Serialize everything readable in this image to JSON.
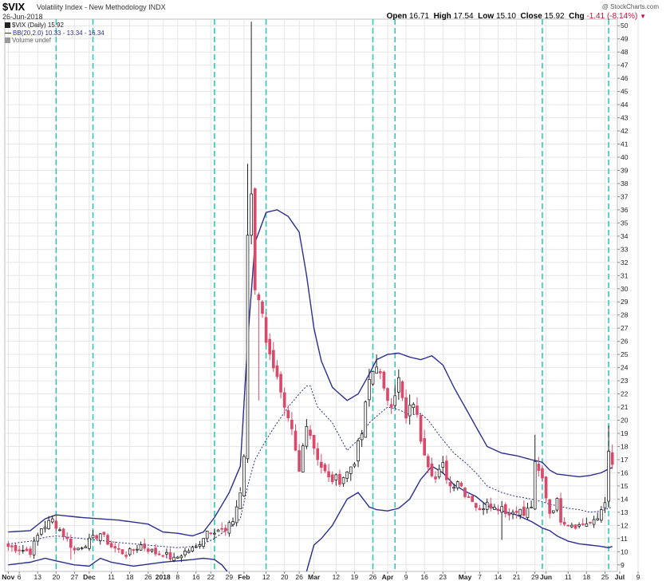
{
  "header": {
    "symbol": "$VIX",
    "symbol_name": "Volatility Index - New Methodology",
    "exchange": "INDX",
    "date": "26-Jun-2018",
    "open_label": "Open",
    "open": "16.71",
    "high_label": "High",
    "high": "17.54",
    "low_label": "Low",
    "low": "15.10",
    "close_label": "Close",
    "close": "15.92",
    "chg_label": "Chg",
    "chg": "-1.41 (-8.14%)",
    "brand": "@ StockCharts.com"
  },
  "legend": {
    "series1": "$VIX (Daily) 15.92",
    "series2": "BB(20,2.0) 10.33 - 13.34 - 16.34",
    "series3": "Volume undef"
  },
  "colors": {
    "up": "#222222",
    "down": "#d94a6a",
    "bands": "#2b2f8f",
    "cycle_lines": "#2fc8b8",
    "grid": "#e6e6e6"
  },
  "chart_data": {
    "type": "candlestick",
    "ylim": [
      8.5,
      50.5
    ],
    "y_ticks": [
      9,
      10,
      11,
      12,
      13,
      14,
      15,
      16,
      17,
      18,
      19,
      20,
      21,
      22,
      23,
      24,
      25,
      26,
      27,
      28,
      29,
      30,
      31,
      32,
      33,
      34,
      35,
      36,
      37,
      38,
      39,
      40,
      41,
      42,
      43,
      44,
      45,
      46,
      47,
      48,
      49,
      50
    ],
    "x_ticks": [
      {
        "label": "Nov",
        "bold": true,
        "bar": 0
      },
      {
        "label": "6",
        "bar": 3
      },
      {
        "label": "13",
        "bar": 8
      },
      {
        "label": "20",
        "bar": 13
      },
      {
        "label": "27",
        "bar": 18
      },
      {
        "label": "Dec",
        "bold": true,
        "bar": 22
      },
      {
        "label": "11",
        "bar": 28
      },
      {
        "label": "18",
        "bar": 33
      },
      {
        "label": "26",
        "bar": 38
      },
      {
        "label": "2018",
        "bold": true,
        "bar": 42
      },
      {
        "label": "8",
        "bar": 46
      },
      {
        "label": "16",
        "bar": 51
      },
      {
        "label": "22",
        "bar": 55
      },
      {
        "label": "29",
        "bar": 60
      },
      {
        "label": "Feb",
        "bold": true,
        "bar": 64
      },
      {
        "label": "12",
        "bar": 70
      },
      {
        "label": "20",
        "bar": 75
      },
      {
        "label": "26",
        "bar": 79
      },
      {
        "label": "Mar",
        "bold": true,
        "bar": 83
      },
      {
        "label": "12",
        "bar": 89
      },
      {
        "label": "19",
        "bar": 94
      },
      {
        "label": "26",
        "bar": 99
      },
      {
        "label": "Apr",
        "bold": true,
        "bar": 103
      },
      {
        "label": "9",
        "bar": 108
      },
      {
        "label": "16",
        "bar": 113
      },
      {
        "label": "23",
        "bar": 118
      },
      {
        "label": "May",
        "bold": true,
        "bar": 124
      },
      {
        "label": "7",
        "bar": 128
      },
      {
        "label": "14",
        "bar": 133
      },
      {
        "label": "21",
        "bar": 138
      },
      {
        "label": "29",
        "bar": 143
      },
      {
        "label": "Jun",
        "bold": true,
        "bar": 146
      },
      {
        "label": "11",
        "bar": 152
      },
      {
        "label": "18",
        "bar": 157
      },
      {
        "label": "25",
        "bar": 162
      },
      {
        "label": "Jul",
        "bold": true,
        "bar": 166
      },
      {
        "label": "9",
        "bar": 171
      }
    ],
    "cycle_lines_at_bars": [
      13,
      23,
      56,
      70,
      99,
      105,
      145,
      163
    ],
    "anchors": [
      [
        0,
        10.4
      ],
      [
        3,
        10.2
      ],
      [
        6,
        10.0
      ],
      [
        9,
        11.8
      ],
      [
        12,
        12.4
      ],
      [
        15,
        11.3
      ],
      [
        18,
        10.1
      ],
      [
        22,
        10.8
      ],
      [
        25,
        11.4
      ],
      [
        28,
        10.4
      ],
      [
        32,
        9.8
      ],
      [
        36,
        10.5
      ],
      [
        40,
        9.9
      ],
      [
        42,
        9.9
      ],
      [
        45,
        9.4
      ],
      [
        48,
        10.0
      ],
      [
        51,
        10.3
      ],
      [
        54,
        11.6
      ],
      [
        57,
        11.7
      ],
      [
        59,
        11.5
      ],
      [
        61,
        12.4
      ],
      [
        63,
        14.5
      ],
      [
        64,
        17.3
      ],
      [
        65,
        33.5
      ],
      [
        66,
        37.3
      ],
      [
        67,
        30.0
      ],
      [
        68,
        29.5
      ],
      [
        69,
        28.5
      ],
      [
        70,
        25.6
      ],
      [
        71,
        25.5
      ],
      [
        73,
        23.0
      ],
      [
        75,
        20.5
      ],
      [
        77,
        19.0
      ],
      [
        79,
        16.0
      ],
      [
        81,
        20.0
      ],
      [
        83,
        18.0
      ],
      [
        85,
        16.5
      ],
      [
        87,
        15.5
      ],
      [
        90,
        15.5
      ],
      [
        92,
        16.0
      ],
      [
        94,
        17.0
      ],
      [
        96,
        19.0
      ],
      [
        98,
        23.0
      ],
      [
        100,
        24.5
      ],
      [
        102,
        22.0
      ],
      [
        104,
        21.5
      ],
      [
        106,
        23.0
      ],
      [
        108,
        20.0
      ],
      [
        110,
        21.5
      ],
      [
        112,
        18.7
      ],
      [
        114,
        16.8
      ],
      [
        116,
        15.5
      ],
      [
        118,
        16.5
      ],
      [
        120,
        15.0
      ],
      [
        122,
        15.5
      ],
      [
        124,
        14.5
      ],
      [
        126,
        14.0
      ],
      [
        128,
        13.0
      ],
      [
        130,
        14.0
      ],
      [
        132,
        13.3
      ],
      [
        134,
        13.5
      ],
      [
        136,
        12.8
      ],
      [
        138,
        13.3
      ],
      [
        140,
        12.8
      ],
      [
        142,
        13.5
      ],
      [
        143,
        16.5
      ],
      [
        144,
        16.0
      ],
      [
        145,
        15.5
      ],
      [
        147,
        13.0
      ],
      [
        149,
        13.8
      ],
      [
        150,
        12.5
      ],
      [
        152,
        12.2
      ],
      [
        155,
        12.0
      ],
      [
        157,
        12.2
      ],
      [
        159,
        12.2
      ],
      [
        160,
        12.5
      ],
      [
        162,
        14.0
      ],
      [
        163,
        17.3
      ],
      [
        164,
        16.5
      ]
    ],
    "bands": {
      "upper": [
        [
          0,
          11.5
        ],
        [
          6,
          11.6
        ],
        [
          10,
          12.5
        ],
        [
          13,
          12.8
        ],
        [
          20,
          12.6
        ],
        [
          30,
          12.4
        ],
        [
          38,
          12.1
        ],
        [
          42,
          11.5
        ],
        [
          46,
          11.4
        ],
        [
          50,
          11.2
        ],
        [
          53,
          11.5
        ],
        [
          56,
          12.6
        ],
        [
          60,
          14.5
        ],
        [
          63,
          16.5
        ],
        [
          65,
          26
        ],
        [
          67,
          33.5
        ],
        [
          70,
          35.8
        ],
        [
          73,
          36.0
        ],
        [
          76,
          35.5
        ],
        [
          79,
          34.3
        ],
        [
          81,
          31
        ],
        [
          83,
          27
        ],
        [
          85,
          24.5
        ],
        [
          88,
          22.5
        ],
        [
          92,
          21.5
        ],
        [
          95,
          22.0
        ],
        [
          98,
          23.5
        ],
        [
          100,
          24.6
        ],
        [
          103,
          25.0
        ],
        [
          106,
          25.1
        ],
        [
          109,
          24.8
        ],
        [
          112,
          24.6
        ],
        [
          115,
          24.9
        ],
        [
          118,
          24.2
        ],
        [
          121,
          22.5
        ],
        [
          124,
          21.0
        ],
        [
          127,
          19.5
        ],
        [
          130,
          18.0
        ],
        [
          134,
          17.5
        ],
        [
          138,
          17.3
        ],
        [
          142,
          17.0
        ],
        [
          145,
          16.8
        ],
        [
          147,
          16.2
        ],
        [
          149,
          15.9
        ],
        [
          152,
          15.8
        ],
        [
          155,
          15.7
        ],
        [
          158,
          15.8
        ],
        [
          161,
          16.0
        ],
        [
          163,
          16.3
        ],
        [
          164,
          16.4
        ]
      ],
      "middle": [
        [
          0,
          10.6
        ],
        [
          6,
          10.8
        ],
        [
          10,
          11.1
        ],
        [
          13,
          11.2
        ],
        [
          20,
          11.0
        ],
        [
          30,
          10.7
        ],
        [
          38,
          10.5
        ],
        [
          42,
          10.4
        ],
        [
          46,
          10.3
        ],
        [
          50,
          10.4
        ],
        [
          53,
          10.6
        ],
        [
          56,
          11.0
        ],
        [
          60,
          11.8
        ],
        [
          63,
          12.5
        ],
        [
          65,
          15.0
        ],
        [
          67,
          17.0
        ],
        [
          70,
          18.5
        ],
        [
          73,
          19.8
        ],
        [
          76,
          21.0
        ],
        [
          79,
          22.0
        ],
        [
          81,
          22.6
        ],
        [
          82,
          22.6
        ],
        [
          84,
          21.0
        ],
        [
          88,
          19.8
        ],
        [
          92,
          17.7
        ],
        [
          95,
          18.5
        ],
        [
          98,
          19.8
        ],
        [
          100,
          20.3
        ],
        [
          103,
          21.0
        ],
        [
          106,
          20.8
        ],
        [
          109,
          20.4
        ],
        [
          112,
          20.5
        ],
        [
          114,
          20.0
        ],
        [
          118,
          18.5
        ],
        [
          121,
          17.5
        ],
        [
          124,
          16.8
        ],
        [
          127,
          16.0
        ],
        [
          130,
          15.0
        ],
        [
          134,
          14.5
        ],
        [
          138,
          14.2
        ],
        [
          142,
          14.0
        ],
        [
          145,
          13.8
        ],
        [
          147,
          13.6
        ],
        [
          149,
          13.5
        ],
        [
          152,
          13.3
        ],
        [
          155,
          13.2
        ],
        [
          158,
          13.0
        ],
        [
          161,
          13.1
        ],
        [
          163,
          13.3
        ],
        [
          164,
          13.4
        ]
      ],
      "lower": [
        [
          0,
          9.0
        ],
        [
          6,
          9.2
        ],
        [
          10,
          9.5
        ],
        [
          13,
          9.3
        ],
        [
          18,
          9.0
        ],
        [
          22,
          8.9
        ],
        [
          25,
          9.5
        ],
        [
          28,
          9.2
        ],
        [
          34,
          8.9
        ],
        [
          42,
          9.2
        ],
        [
          46,
          9.3
        ],
        [
          50,
          9.4
        ],
        [
          53,
          9.5
        ],
        [
          56,
          9.4
        ],
        [
          58,
          9.0
        ],
        [
          60,
          8.3
        ],
        [
          62,
          5
        ],
        [
          64,
          2
        ],
        [
          66,
          0.5
        ],
        [
          68,
          0.3
        ],
        [
          70,
          0.6
        ],
        [
          73,
          1.5
        ],
        [
          76,
          3.5
        ],
        [
          79,
          6.5
        ],
        [
          81,
          8.5
        ],
        [
          83,
          10.5
        ],
        [
          85,
          11.0
        ],
        [
          88,
          12.0
        ],
        [
          92,
          14.0
        ],
        [
          95,
          14.5
        ],
        [
          98,
          13.4
        ],
        [
          100,
          13.2
        ],
        [
          103,
          13.1
        ],
        [
          106,
          13.3
        ],
        [
          109,
          14.0
        ],
        [
          112,
          15.5
        ],
        [
          115,
          16.5
        ],
        [
          118,
          16.0
        ],
        [
          121,
          15.1
        ],
        [
          124,
          14.6
        ],
        [
          127,
          14.2
        ],
        [
          130,
          13.5
        ],
        [
          134,
          13.1
        ],
        [
          138,
          12.8
        ],
        [
          142,
          12.3
        ],
        [
          145,
          11.8
        ],
        [
          147,
          11.6
        ],
        [
          149,
          11.2
        ],
        [
          152,
          10.8
        ],
        [
          155,
          10.6
        ],
        [
          158,
          10.5
        ],
        [
          161,
          10.4
        ],
        [
          163,
          10.3
        ],
        [
          164,
          10.4
        ]
      ]
    }
  }
}
